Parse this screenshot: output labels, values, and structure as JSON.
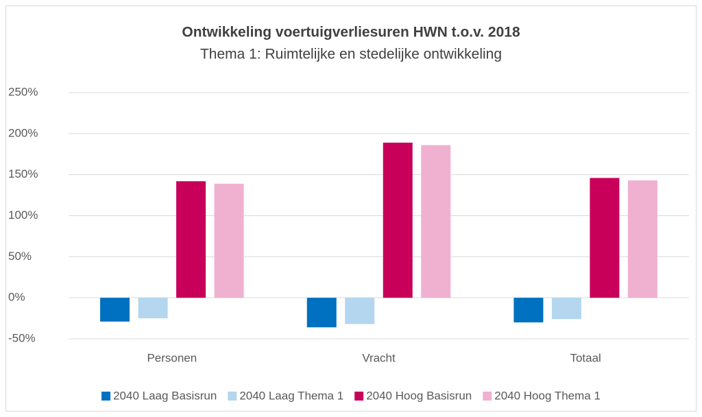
{
  "chart_data": {
    "type": "bar",
    "title": "Ontwikkeling voertuigverliesuren HWN t.o.v. 2018",
    "subtitle": "Thema 1: Ruimtelijke en stedelijke ontwikkeling",
    "categories": [
      "Personen",
      "Vracht",
      "Totaal"
    ],
    "series": [
      {
        "name": "2040 Laag Basisrun",
        "color": "#0070c0",
        "values": [
          -29,
          -36,
          -30
        ]
      },
      {
        "name": "2040 Laag Thema 1",
        "color": "#b4d6ee",
        "values": [
          -25,
          -32,
          -26
        ]
      },
      {
        "name": "2040 Hoog Basisrun",
        "color": "#c8005a",
        "values": [
          142,
          189,
          146
        ]
      },
      {
        "name": "2040 Hoog Thema 1",
        "color": "#f0b1d0",
        "values": [
          139,
          186,
          143
        ]
      }
    ],
    "ylim": [
      -50,
      250
    ],
    "yticks": [
      {
        "value": -50,
        "label": "-50%"
      },
      {
        "value": 0,
        "label": "0%"
      },
      {
        "value": 50,
        "label": "50%"
      },
      {
        "value": 100,
        "label": "100%"
      },
      {
        "value": 150,
        "label": "150%"
      },
      {
        "value": 200,
        "label": "200%"
      },
      {
        "value": 250,
        "label": "250%"
      }
    ],
    "grid": true,
    "legend": "bottom"
  }
}
